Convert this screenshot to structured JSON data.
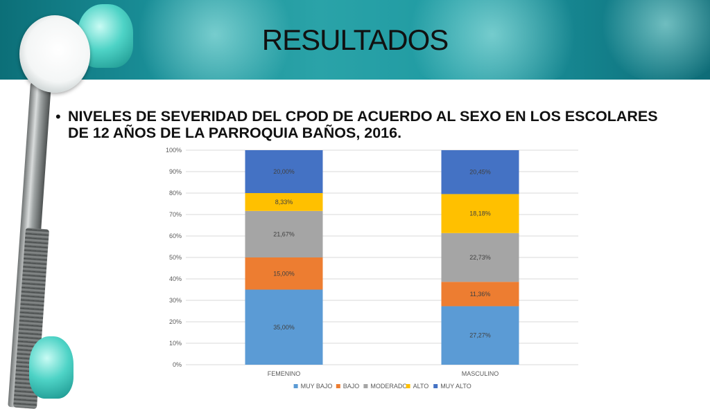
{
  "slide": {
    "title": "RESULTADOS",
    "bullet": "NIVELES DE SEVERIDAD DEL CPOD DE ACUERDO AL SEXO EN LOS ESCOLARES DE 12 AÑOS DE LA PARROQUIA BAÑOS, 2016."
  },
  "chart_data": {
    "type": "bar",
    "stacked": true,
    "percent_stacked": true,
    "categories": [
      "FEMENINO",
      "MASCULINO"
    ],
    "series": [
      {
        "name": "MUY BAJO",
        "color": "#5b9bd5",
        "values": [
          35.0,
          27.27
        ],
        "labels": [
          "35,00%",
          "27,27%"
        ]
      },
      {
        "name": "BAJO",
        "color": "#ed7d31",
        "values": [
          15.0,
          11.36
        ],
        "labels": [
          "15,00%",
          "11,36%"
        ]
      },
      {
        "name": "MODERADO",
        "color": "#a5a5a5",
        "values": [
          21.67,
          22.73
        ],
        "labels": [
          "21,67%",
          "22,73%"
        ]
      },
      {
        "name": "ALTO",
        "color": "#ffc000",
        "values": [
          8.33,
          18.18
        ],
        "labels": [
          "8,33%",
          "18,18%"
        ]
      },
      {
        "name": "MUY ALTO",
        "color": "#4472c4",
        "values": [
          20.0,
          20.45
        ],
        "labels": [
          "20,00%",
          "20,45%"
        ]
      }
    ],
    "ylim": [
      0,
      100
    ],
    "yticks": [
      "0%",
      "10%",
      "20%",
      "30%",
      "40%",
      "50%",
      "60%",
      "70%",
      "80%",
      "90%",
      "100%"
    ],
    "grid": true,
    "legend": "bottom"
  }
}
